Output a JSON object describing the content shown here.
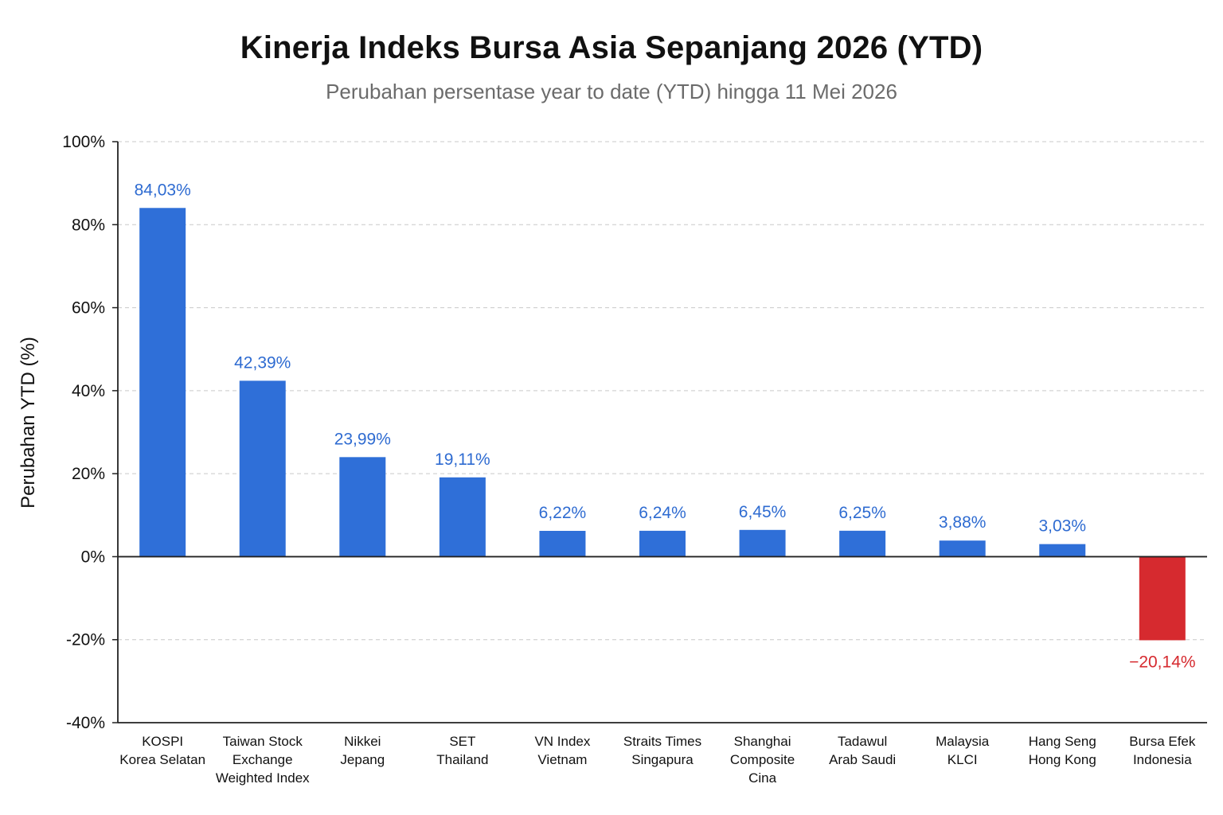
{
  "chart_data": {
    "type": "bar",
    "title": "Kinerja Indeks Bursa Asia Sepanjang 2026 (YTD)",
    "subtitle": "Perubahan persentase year to date (YTD) hingga 11 Mei 2026",
    "ylabel": "Perubahan YTD (%)",
    "xlabel": "",
    "ylim": [
      -40,
      100
    ],
    "yticks": [
      100,
      80,
      60,
      40,
      20,
      0,
      -20,
      -40
    ],
    "ytick_labels": [
      "100%",
      "80%",
      "60%",
      "40%",
      "20%",
      "0%",
      "-20%",
      "-40%"
    ],
    "grid": true,
    "categories": [
      [
        "KOSPI",
        "Korea Selatan"
      ],
      [
        "Taiwan Stock",
        "Exchange",
        "Weighted Index"
      ],
      [
        "Nikkei",
        "Jepang"
      ],
      [
        "SET",
        "Thailand"
      ],
      [
        "VN Index",
        "Vietnam"
      ],
      [
        "Straits Times",
        "Singapura"
      ],
      [
        "Shanghai",
        "Composite",
        "Cina"
      ],
      [
        "Tadawul",
        "Arab Saudi"
      ],
      [
        "Malaysia",
        "KLCI"
      ],
      [
        "Hang Seng",
        "Hong Kong"
      ],
      [
        "Bursa Efek",
        "Indonesia"
      ]
    ],
    "values": [
      84.03,
      42.39,
      23.99,
      19.11,
      6.22,
      6.24,
      6.45,
      6.25,
      3.88,
      3.03,
      -20.14
    ],
    "value_labels": [
      "84,03%",
      "42,39%",
      "23,99%",
      "19,11%",
      "6,22%",
      "6,24%",
      "6,45%",
      "6,25%",
      "3,88%",
      "3,03%",
      "−20,14%"
    ],
    "colors": {
      "positive": "#2f6fd8",
      "negative": "#d62a2f",
      "positive_label": "#2e6bd1",
      "negative_label": "#d62a2f"
    }
  }
}
